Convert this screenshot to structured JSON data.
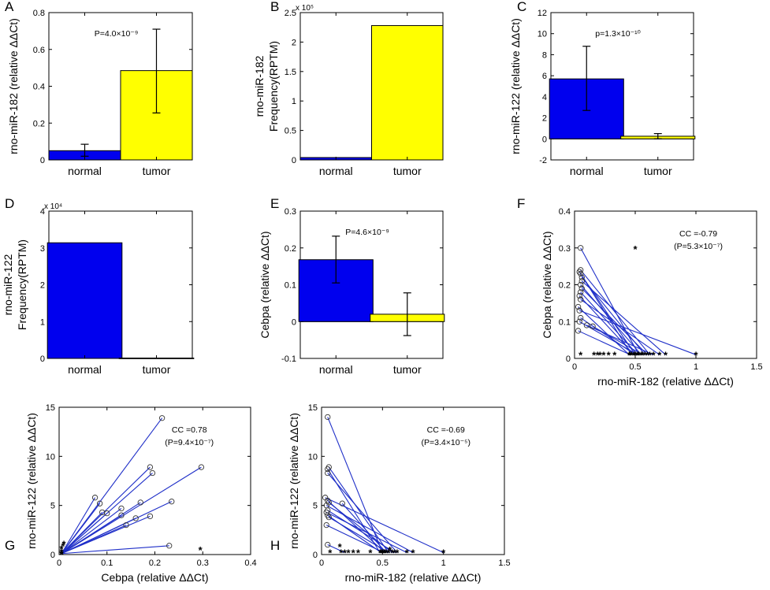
{
  "chart_data": [
    {
      "id": "A",
      "panel_label": "A",
      "type": "bar",
      "categories": [
        "normal",
        "tumor"
      ],
      "values": [
        0.05,
        0.485
      ],
      "errors": [
        [
          0.02,
          0.085
        ],
        [
          0.255,
          0.71
        ]
      ],
      "colors": [
        "#0000ee",
        "#ffff00"
      ],
      "ylabel": "rno-miR-182 (relative ΔΔCt)",
      "ylim": [
        0,
        0.8
      ],
      "yticks": [
        0,
        0.2,
        0.4,
        0.6,
        0.8
      ],
      "yticklabels": [
        "0",
        "0.2",
        "0.4",
        "0.6",
        "0.8"
      ],
      "annotation": "P=4.0×10⁻⁹"
    },
    {
      "id": "B",
      "panel_label": "B",
      "type": "bar",
      "categories": [
        "normal",
        "tumor"
      ],
      "values": [
        0.04,
        2.28
      ],
      "colors": [
        "#0000ee",
        "#ffff00"
      ],
      "ylabel_lines": [
        "rno-miR-182",
        "Frequency(RPTM)"
      ],
      "ylim": [
        0,
        2.5
      ],
      "yticks": [
        0,
        0.5,
        1,
        1.5,
        2,
        2.5
      ],
      "yticklabels": [
        "0",
        "0.5",
        "1",
        "1.5",
        "2",
        "2.5"
      ],
      "multiplier": "x 10⁵"
    },
    {
      "id": "C",
      "panel_label": "C",
      "type": "bar",
      "categories": [
        "normal",
        "tumor"
      ],
      "values": [
        5.7,
        0.25
      ],
      "errors": [
        [
          2.7,
          8.8
        ],
        [
          0.0,
          0.5
        ]
      ],
      "colors": [
        "#0000ee",
        "#ffff00"
      ],
      "ylabel": "rno-miR-122 (relative ΔΔCt)",
      "ylim": [
        -2,
        12
      ],
      "yticks": [
        -2,
        0,
        2,
        4,
        6,
        8,
        10,
        12
      ],
      "yticklabels": [
        "-2",
        "0",
        "2",
        "4",
        "6",
        "8",
        "10",
        "12"
      ],
      "annotation": "p=1.3×10⁻¹⁰"
    },
    {
      "id": "D",
      "panel_label": "D",
      "type": "bar",
      "categories": [
        "normal",
        "tumor"
      ],
      "values": [
        3.14,
        0.01
      ],
      "colors": [
        "#0000ee",
        "#ffff00"
      ],
      "ylabel_lines": [
        "rno-miR-122",
        "Frequency(RPTM)"
      ],
      "ylim": [
        0,
        4
      ],
      "yticks": [
        0,
        1,
        2,
        3,
        4
      ],
      "yticklabels": [
        "0",
        "1",
        "2",
        "3",
        "4"
      ],
      "multiplier": "x 10⁴"
    },
    {
      "id": "E",
      "panel_label": "E",
      "type": "bar",
      "categories": [
        "normal",
        "tumor"
      ],
      "values": [
        0.168,
        0.02
      ],
      "errors": [
        [
          0.105,
          0.232
        ],
        [
          -0.038,
          0.078
        ]
      ],
      "colors": [
        "#0000ee",
        "#ffff00"
      ],
      "ylabel": "Cebpa (relative ΔΔCt)",
      "ylim": [
        -0.1,
        0.3
      ],
      "yticks": [
        -0.1,
        0,
        0.1,
        0.2,
        0.3
      ],
      "yticklabels": [
        "-0.1",
        "0",
        "0.1",
        "0.2",
        "0.3"
      ],
      "annotation": "P=4.6×10⁻⁹"
    },
    {
      "id": "F",
      "panel_label": "F",
      "type": "scatter",
      "xlabel": "rno-miR-182 (relative ΔΔCt)",
      "ylabel": "Cebpa (relative ΔΔCt)",
      "xlim": [
        0,
        1.5
      ],
      "xticks": [
        0,
        0.5,
        1,
        1.5
      ],
      "xticklabels": [
        "0",
        "0.5",
        "1",
        "1.5"
      ],
      "ylim": [
        0,
        0.4
      ],
      "yticks": [
        0,
        0.1,
        0.2,
        0.3,
        0.4
      ],
      "yticklabels": [
        "0",
        "0.1",
        "0.2",
        "0.3",
        "0.4"
      ],
      "annotation_lines": [
        "CC =-0.79",
        "(P=5.3×10⁻⁷)"
      ],
      "pairs": [
        [
          0.05,
          0.3,
          0.53,
          0.01
        ],
        [
          0.05,
          0.24,
          0.62,
          0.01
        ],
        [
          0.04,
          0.235,
          0.5,
          0.01
        ],
        [
          0.05,
          0.23,
          0.47,
          0.01
        ],
        [
          0.06,
          0.22,
          0.58,
          0.01
        ],
        [
          0.06,
          0.21,
          0.75,
          0.01
        ],
        [
          0.05,
          0.2,
          0.55,
          0.01
        ],
        [
          0.06,
          0.19,
          0.6,
          0.01
        ],
        [
          0.05,
          0.18,
          0.52,
          0.01
        ],
        [
          0.04,
          0.17,
          0.49,
          0.01
        ],
        [
          0.05,
          0.16,
          0.7,
          0.01
        ],
        [
          0.03,
          0.14,
          0.45,
          0.01
        ],
        [
          0.04,
          0.13,
          1.0,
          0.01
        ],
        [
          0.05,
          0.11,
          0.5,
          0.01
        ],
        [
          0.04,
          0.1,
          0.52,
          0.01
        ],
        [
          0.1,
          0.09,
          0.65,
          0.01
        ],
        [
          0.15,
          0.087,
          0.56,
          0.01
        ],
        [
          0.03,
          0.075,
          0.46,
          0.01
        ]
      ],
      "extra_stars": [
        [
          0.05,
          0.01
        ],
        [
          0.16,
          0.01
        ],
        [
          0.19,
          0.01
        ],
        [
          0.21,
          0.01
        ],
        [
          0.24,
          0.01
        ],
        [
          0.28,
          0.01
        ],
        [
          0.33,
          0.01
        ],
        [
          0.5,
          0.297
        ]
      ]
    },
    {
      "id": "G",
      "panel_label": "G",
      "type": "scatter",
      "xlabel": "Cebpa (relative ΔΔCt)",
      "ylabel": "rno-miR-122 (relative ΔΔCt)",
      "xlim": [
        0,
        0.4
      ],
      "xticks": [
        0,
        0.1,
        0.2,
        0.3,
        0.4
      ],
      "xticklabels": [
        "0",
        "0.1",
        "0.2",
        "0.3",
        "0.4"
      ],
      "ylim": [
        0,
        15
      ],
      "yticks": [
        0,
        5,
        10,
        15
      ],
      "yticklabels": [
        "0",
        "5",
        "10",
        "15"
      ],
      "annotation_lines": [
        "CC =0.78",
        "(P=9.4×10⁻⁷)"
      ],
      "pairs": [
        [
          0.215,
          13.9,
          0.005,
          0.1
        ],
        [
          0.297,
          8.9,
          0.005,
          0.1
        ],
        [
          0.19,
          8.9,
          0.005,
          0.1
        ],
        [
          0.195,
          8.3,
          0.005,
          0.1
        ],
        [
          0.075,
          5.8,
          0.005,
          0.1
        ],
        [
          0.085,
          5.2,
          0.005,
          0.1
        ],
        [
          0.235,
          5.4,
          0.005,
          0.1
        ],
        [
          0.17,
          5.3,
          0.005,
          0.1
        ],
        [
          0.13,
          4.7,
          0.005,
          0.1
        ],
        [
          0.09,
          4.3,
          0.005,
          0.1
        ],
        [
          0.1,
          4.2,
          0.005,
          0.1
        ],
        [
          0.13,
          4.0,
          0.005,
          0.1
        ],
        [
          0.19,
          3.9,
          0.005,
          0.1
        ],
        [
          0.16,
          3.7,
          0.005,
          0.1
        ],
        [
          0.14,
          3.0,
          0.005,
          0.1
        ],
        [
          0.23,
          0.9,
          0.005,
          0.1
        ]
      ],
      "extra_stars": [
        [
          0.295,
          0.5
        ],
        [
          0.005,
          0.3
        ],
        [
          0.005,
          0.6
        ],
        [
          0.008,
          0.9
        ],
        [
          0.01,
          1.1
        ]
      ]
    },
    {
      "id": "H",
      "panel_label": "H",
      "type": "scatter",
      "xlabel": "rno-miR-182 (relative ΔΔCt)",
      "ylabel": "rno-miR-122 (relative ΔΔCt)",
      "xlim": [
        0,
        1.5
      ],
      "xticks": [
        0,
        0.5,
        1,
        1.5
      ],
      "xticklabels": [
        "0",
        "0.5",
        "1",
        "1.5"
      ],
      "ylim": [
        0,
        15
      ],
      "yticks": [
        0,
        5,
        10,
        15
      ],
      "yticklabels": [
        "0",
        "5",
        "10",
        "15"
      ],
      "annotation_lines": [
        "CC =-0.69",
        "(P=3.4×10⁻⁵)"
      ],
      "pairs": [
        [
          0.05,
          14.0,
          0.5,
          0.2
        ],
        [
          0.06,
          8.9,
          0.55,
          0.2
        ],
        [
          0.05,
          8.7,
          0.48,
          0.2
        ],
        [
          0.05,
          8.3,
          0.62,
          0.2
        ],
        [
          0.03,
          5.8,
          1.0,
          0.2
        ],
        [
          0.05,
          5.5,
          0.52,
          0.2
        ],
        [
          0.06,
          5.3,
          0.58,
          0.2
        ],
        [
          0.17,
          5.2,
          0.53,
          0.2
        ],
        [
          0.04,
          5.0,
          0.75,
          0.2
        ],
        [
          0.05,
          4.5,
          0.6,
          0.2
        ],
        [
          0.04,
          4.3,
          0.7,
          0.2
        ],
        [
          0.05,
          4.0,
          0.49,
          0.2
        ],
        [
          0.06,
          3.8,
          0.55,
          0.2
        ],
        [
          0.04,
          3.0,
          0.51,
          0.2
        ],
        [
          0.05,
          1.0,
          0.19,
          0.2
        ]
      ],
      "extra_stars": [
        [
          0.07,
          0.2
        ],
        [
          0.16,
          0.2
        ],
        [
          0.22,
          0.2
        ],
        [
          0.26,
          0.2
        ],
        [
          0.3,
          0.2
        ],
        [
          0.4,
          0.2
        ],
        [
          0.15,
          0.8
        ],
        [
          0.56,
          0.5
        ]
      ]
    }
  ]
}
